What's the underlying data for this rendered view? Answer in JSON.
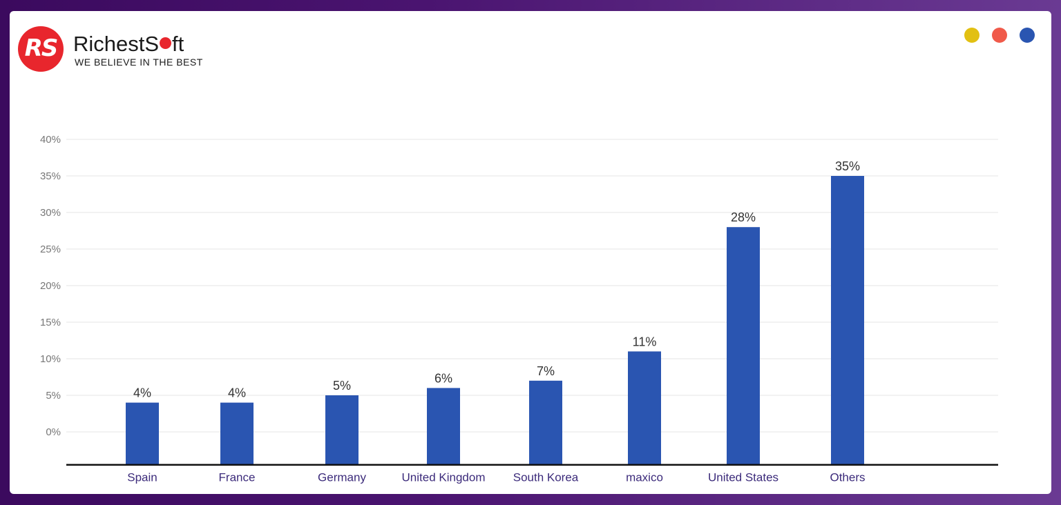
{
  "brand": {
    "logo_letters": "RS",
    "name_part1": "RichestS",
    "name_part2": "ft",
    "tagline": "WE BELIEVE IN THE BEST"
  },
  "window_dots": {
    "colors": [
      "#e2c012",
      "#f05a4a",
      "#2a55b1"
    ]
  },
  "chart_data": {
    "type": "bar",
    "categories": [
      "Spain",
      "France",
      "Germany",
      "United Kingdom",
      "South Korea",
      "maxico",
      "United States",
      "Others"
    ],
    "values": [
      4,
      4,
      5,
      6,
      7,
      11,
      28,
      35
    ],
    "data_labels": [
      "4%",
      "4%",
      "5%",
      "6%",
      "7%",
      "11%",
      "28%",
      "35%"
    ],
    "yticks": [
      0,
      5,
      10,
      15,
      20,
      25,
      30,
      35,
      40
    ],
    "ytick_labels": [
      "0%",
      "5%",
      "10%",
      "15%",
      "20%",
      "25%",
      "30%",
      "35%",
      "40%"
    ],
    "ylim": [
      -4.5,
      40
    ],
    "grid": true,
    "bar_color": "#2a55b1",
    "category_label_color": "#3b2a7a",
    "tick_label_color": "#777777"
  }
}
